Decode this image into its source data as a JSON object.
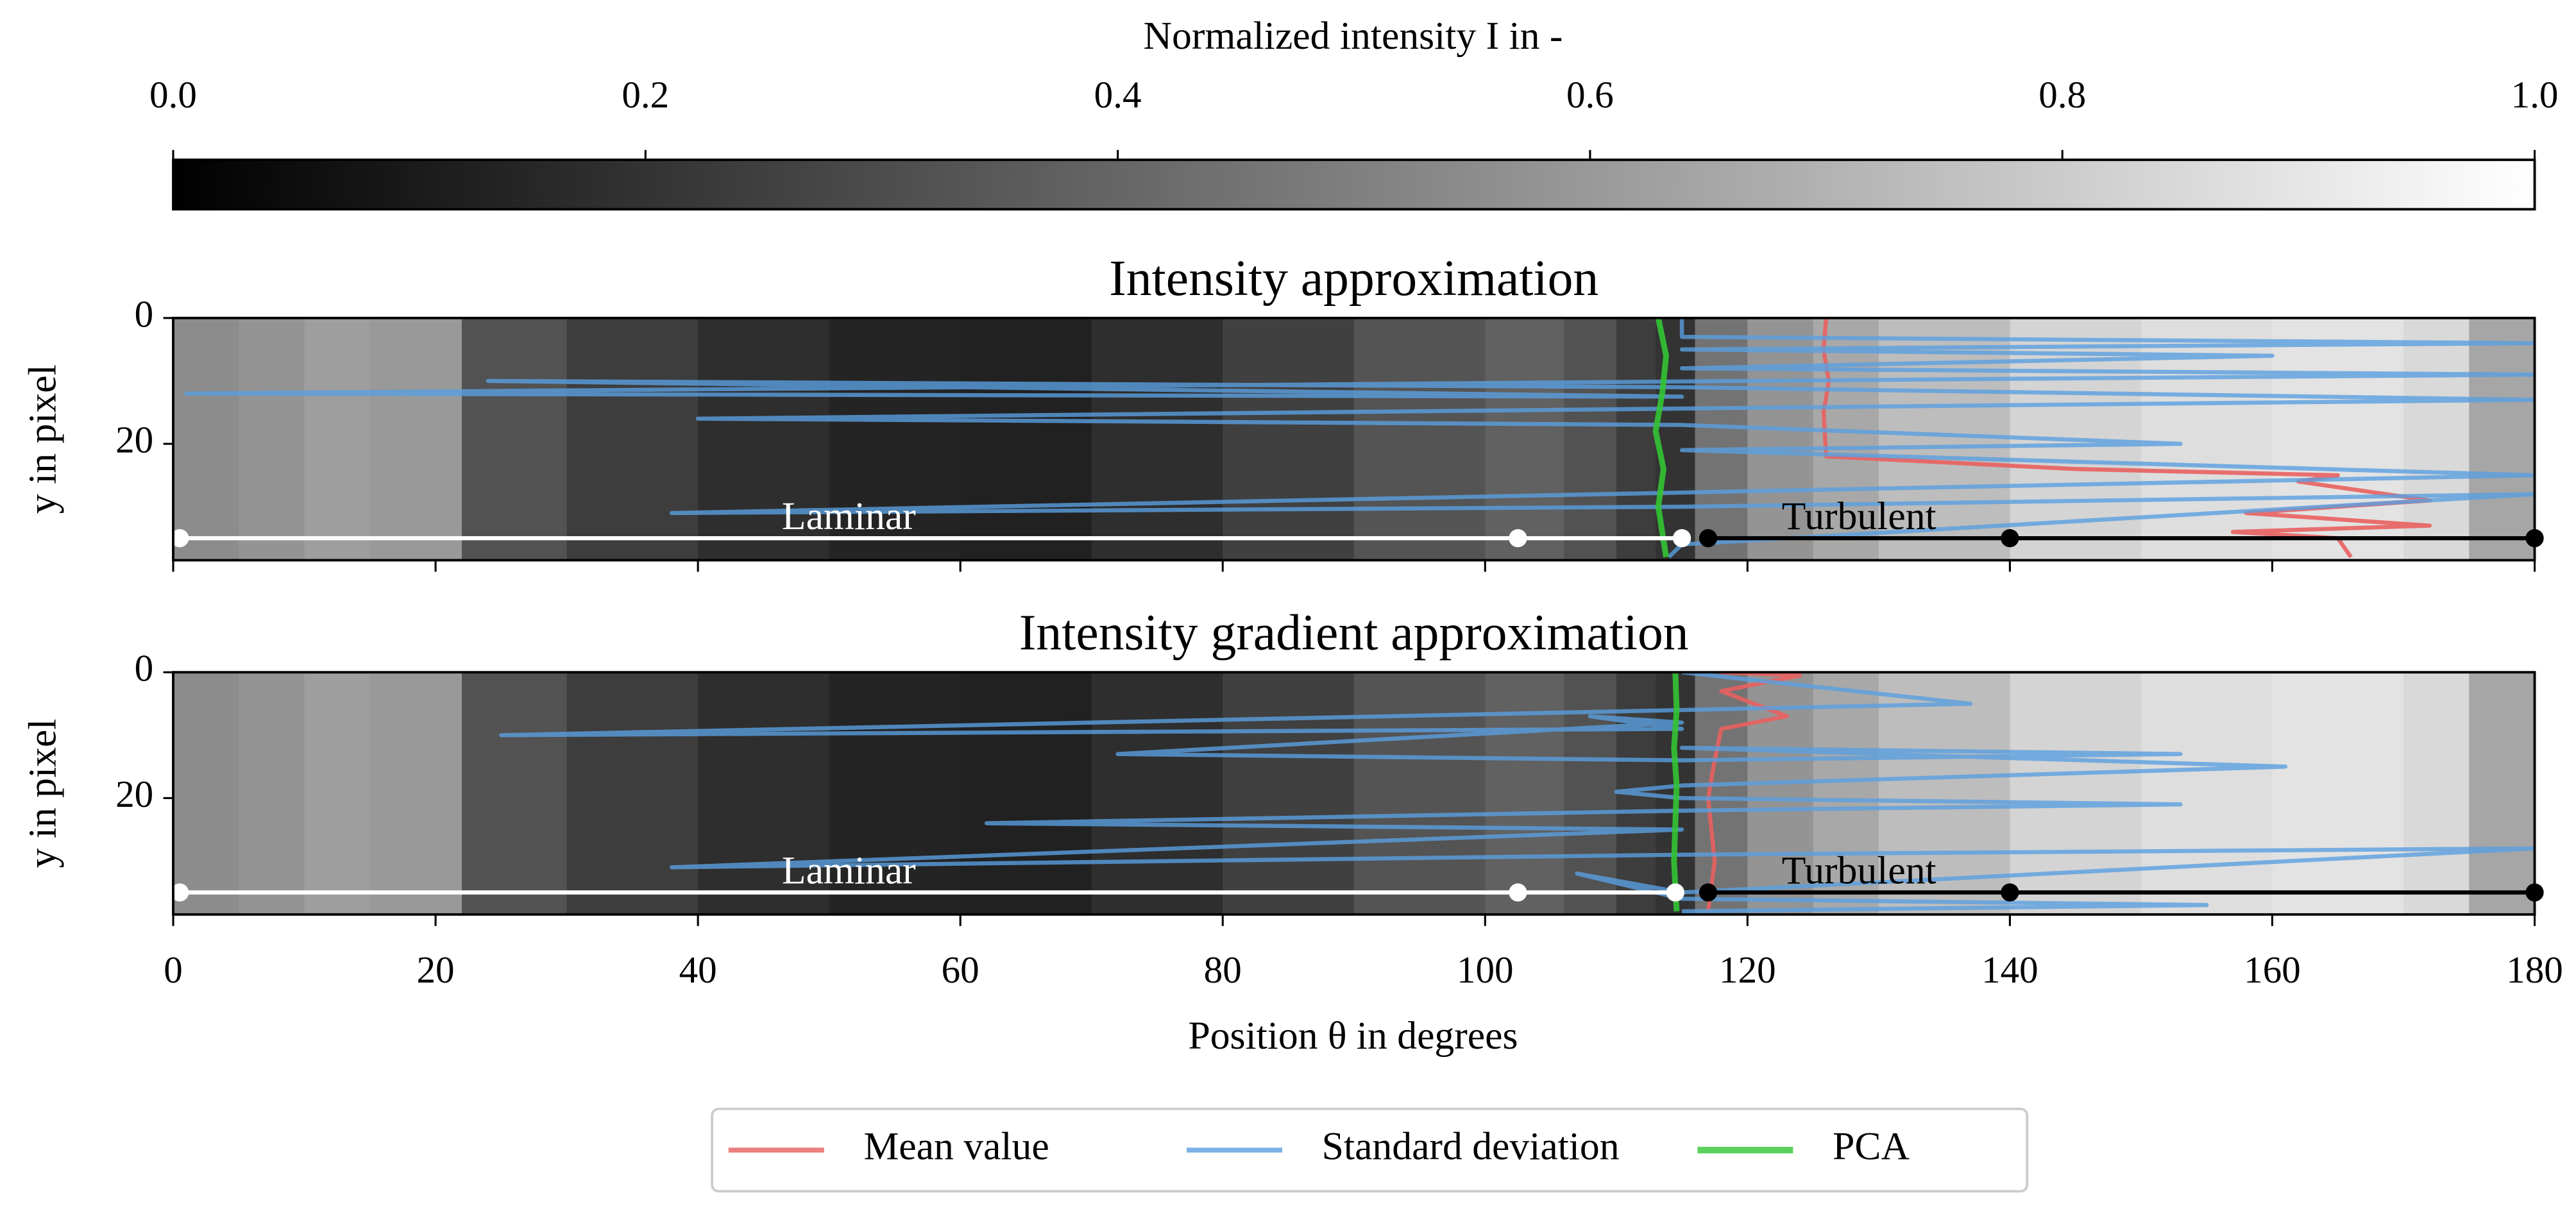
{
  "chart_data": {
    "type": "heatmap-lines",
    "colorbar": {
      "label": "Normalized intensity I in -",
      "lim": [
        0,
        1
      ],
      "ticks": [
        {
          "value": 0,
          "label": "0.0"
        },
        {
          "value": 0.2,
          "label": "0.2"
        },
        {
          "value": 0.4,
          "label": "0.4"
        },
        {
          "value": 0.6,
          "label": "0.6"
        },
        {
          "value": 0.8,
          "label": "0.8"
        },
        {
          "value": 1,
          "label": "1.0"
        }
      ]
    },
    "xlabel": "Position θ in degrees",
    "ylabel": "y in pixel",
    "xlim": [
      0,
      180
    ],
    "xticks": [
      0,
      20,
      40,
      60,
      80,
      100,
      120,
      140,
      160,
      180
    ],
    "ylim": [
      38.5,
      0
    ],
    "yticks": [
      0,
      20
    ],
    "panels": [
      {
        "title": "Intensity approximation",
        "intensity_bins": [
          0,
          5,
          10,
          15,
          22,
          30,
          40,
          50,
          60,
          70,
          80,
          90,
          100,
          106,
          110,
          113,
          116,
          120,
          125,
          130,
          140,
          150,
          160,
          170,
          175,
          180
        ],
        "intensity": [
          0.55,
          0.58,
          0.62,
          0.6,
          0.32,
          0.24,
          0.18,
          0.14,
          0.13,
          0.18,
          0.25,
          0.33,
          0.38,
          0.32,
          0.24,
          0.2,
          0.45,
          0.58,
          0.66,
          0.74,
          0.83,
          0.87,
          0.89,
          0.85,
          0.65,
          0.56
        ],
        "series": [
          {
            "name": "Mean value",
            "color": "#e8605f",
            "x": [
              126,
              125.8,
              126.2,
              125.8,
              126,
              145,
              165,
              162,
              172,
              158,
              172,
              157,
              165,
              166
            ],
            "y": [
              0,
              5,
              10,
              15,
              22,
              24,
              25,
              26,
              29,
              31,
              33,
              34,
              35,
              38
            ]
          },
          {
            "name": "Standard deviation",
            "color": "#5a9fe0",
            "x": [
              115,
              115,
              180,
              115,
              160,
              115,
              180,
              1,
              115,
              24,
              115,
              180,
              40,
              115,
              153,
              115,
              180,
              38,
              115,
              180,
              115,
              114
            ],
            "y": [
              0,
              3,
              4,
              5,
              6,
              8,
              9,
              12,
              12.5,
              10,
              11,
              13,
              16,
              17,
              20,
              21,
              25,
              31,
              30,
              28,
              36,
              38
            ]
          },
          {
            "name": "PCA",
            "color": "#33c433",
            "x": [
              113.2,
              113.8,
              113.5,
              113,
              113.6,
              113.2,
              113.8
            ],
            "y": [
              0,
              6,
              12,
              18,
              24,
              30,
              38
            ]
          }
        ],
        "regions": [
          {
            "label": "Laminar",
            "color": "#ffffff",
            "x": [
              0.5,
              102.5,
              115
            ],
            "y": 35
          },
          {
            "label": "Turbulent",
            "color": "#000000",
            "x": [
              117,
              140,
              180
            ],
            "y": 35
          }
        ]
      },
      {
        "title": "Intensity gradient approximation",
        "intensity_bins": [
          0,
          5,
          10,
          15,
          22,
          30,
          40,
          50,
          60,
          70,
          80,
          90,
          100,
          106,
          110,
          113,
          116,
          120,
          125,
          130,
          140,
          150,
          160,
          170,
          175,
          180
        ],
        "intensity": [
          0.55,
          0.58,
          0.62,
          0.6,
          0.32,
          0.24,
          0.18,
          0.14,
          0.13,
          0.18,
          0.25,
          0.33,
          0.38,
          0.32,
          0.24,
          0.2,
          0.45,
          0.58,
          0.66,
          0.74,
          0.83,
          0.87,
          0.89,
          0.85,
          0.65,
          0.56
        ],
        "series": [
          {
            "name": "Mean value",
            "color": "#e8605f",
            "x": [
              118,
              124,
              118,
              123,
              118,
              117.5,
              117,
              117.5,
              117
            ],
            "y": [
              0,
              0.5,
              3,
              7,
              9,
              14,
              20,
              30,
              38
            ]
          },
          {
            "name": "Standard deviation",
            "color": "#5a9fe0",
            "x": [
              115,
              137,
              115,
              25,
              115,
              108,
              115,
              72,
              115,
              153,
              115,
              161,
              115,
              110,
              115,
              153,
              115,
              62,
              115,
              38,
              115,
              180,
              115,
              107,
              115,
              155,
              115
            ],
            "y": [
              0,
              5,
              6,
              10,
              9,
              7,
              8,
              13,
              14,
              13,
              12,
              15,
              18,
              19,
              20,
              21,
              22,
              24,
              25,
              31,
              29,
              28,
              35,
              32,
              36,
              37,
              38
            ]
          },
          {
            "name": "PCA",
            "color": "#33c433",
            "x": [
              114.5,
              114.6,
              114.4,
              114.6,
              114.5,
              114.4,
              114.6
            ],
            "y": [
              0,
              6,
              12,
              18,
              24,
              30,
              38
            ]
          }
        ],
        "regions": [
          {
            "label": "Laminar",
            "color": "#ffffff",
            "x": [
              0.5,
              102.5,
              114.5
            ],
            "y": 35
          },
          {
            "label": "Turbulent",
            "color": "#000000",
            "x": [
              117,
              140,
              180
            ],
            "y": 35
          }
        ]
      }
    ]
  }
}
